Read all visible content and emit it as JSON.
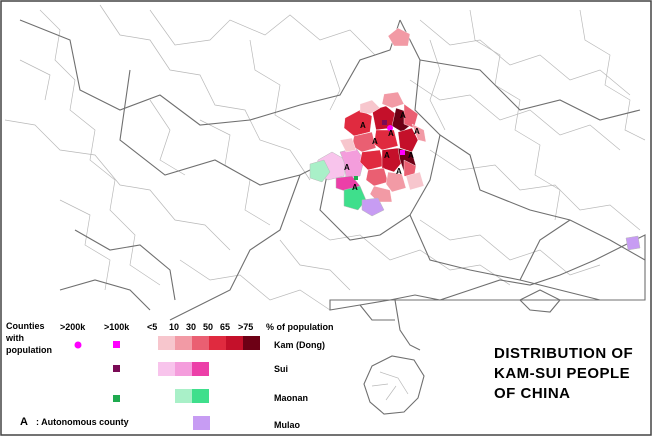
{
  "title": {
    "line1": "DISTRIBUTION OF",
    "line2": "KAM-SUI PEOPLE",
    "line3": "OF CHINA"
  },
  "legend": {
    "counties_label": [
      "Counties",
      "with",
      "population"
    ],
    "size_labels": [
      ">200k",
      ">100k"
    ],
    "pct_labels": [
      "<5",
      "10",
      "30",
      "50",
      "65",
      ">75"
    ],
    "pct_title": "% of population",
    "autonomous_symbol": "A",
    "autonomous_label": ": Autonomous county",
    "groups": [
      {
        "name": "Kam (Dong)",
        "marker_color": "#ff00ff",
        "colors": [
          "#f7c6cd",
          "#f29aa5",
          "#ea5f72",
          "#e02a3f",
          "#c4102a",
          "#6d0015"
        ]
      },
      {
        "name": "Sui",
        "marker_color": "#7a0a55",
        "colors": [
          "#f8c4ec",
          "#f49ddc",
          "#ec3fa8"
        ]
      },
      {
        "name": "Maonan",
        "marker_color": "#1faa4f",
        "colors": [
          "#a9f0c8",
          "#3fdf8c"
        ]
      },
      {
        "name": "Mulao",
        "marker_color": "#b58cef",
        "colors": [
          "#c79cf3"
        ]
      }
    ]
  },
  "map": {
    "land_color": "#ffffff",
    "sea_color": "#ffffff",
    "border_color": "#7a7a7a",
    "county_line_color": "#b9b9b9",
    "autonomous_marks": [
      "A",
      "A",
      "A",
      "A",
      "A",
      "A",
      "A",
      "A",
      "A",
      "A"
    ]
  }
}
